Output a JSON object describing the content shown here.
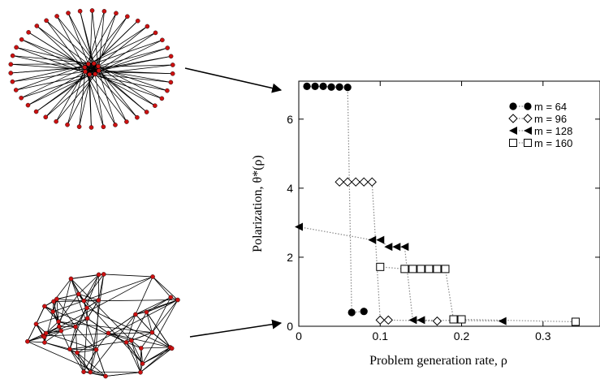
{
  "chart_data": {
    "type": "scatter",
    "xlabel": "Problem generation rate, ρ",
    "ylabel": "Polarization, θ*(ρ)",
    "xlim": [
      0,
      0.37
    ],
    "ylim": [
      0,
      7.1
    ],
    "xticks": [
      0,
      0.1,
      0.2,
      0.3
    ],
    "xtick_labels": [
      "0",
      "0.1",
      "0.2",
      "0.3"
    ],
    "yticks": [
      0,
      2,
      4,
      6
    ],
    "ytick_labels": [
      "0",
      "2",
      "4",
      "6"
    ],
    "grid": false,
    "legend_position": "top-right",
    "series": [
      {
        "name": "m = 64",
        "marker": "filled-circle",
        "x": [
          0.01,
          0.02,
          0.03,
          0.04,
          0.05,
          0.06,
          0.065,
          0.08
        ],
        "y": [
          6.95,
          6.95,
          6.95,
          6.93,
          6.93,
          6.92,
          0.4,
          0.43
        ]
      },
      {
        "name": "m = 96",
        "marker": "open-diamond",
        "x": [
          0.05,
          0.06,
          0.07,
          0.08,
          0.09,
          0.1,
          0.11,
          0.17
        ],
        "y": [
          4.18,
          4.18,
          4.18,
          4.18,
          4.18,
          0.18,
          0.18,
          0.15
        ]
      },
      {
        "name": "m = 128",
        "marker": "filled-left-triangle",
        "x": [
          0.0,
          0.09,
          0.1,
          0.11,
          0.12,
          0.13,
          0.14,
          0.15,
          0.25
        ],
        "y": [
          2.88,
          2.5,
          2.5,
          2.3,
          2.3,
          2.3,
          0.18,
          0.18,
          0.15
        ]
      },
      {
        "name": "m = 160",
        "marker": "open-square",
        "x": [
          0.1,
          0.13,
          0.14,
          0.15,
          0.16,
          0.17,
          0.18,
          0.19,
          0.2,
          0.34
        ],
        "y": [
          1.72,
          1.66,
          1.66,
          1.66,
          1.66,
          1.66,
          1.66,
          0.2,
          0.2,
          0.13
        ]
      }
    ]
  },
  "networks": {
    "star_network": {
      "outer_nodes": 42,
      "inner_nodes": 8,
      "node_color": "#cc1111",
      "edge_color": "#000000"
    },
    "random_network": {
      "nodes": 42,
      "node_color": "#cc1111",
      "edge_color": "#000000"
    }
  }
}
